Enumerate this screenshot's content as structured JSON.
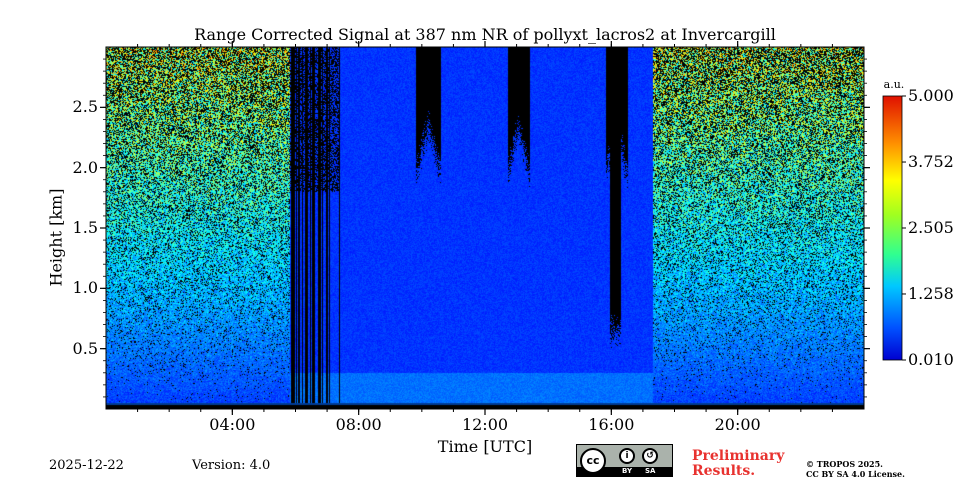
{
  "chart_data": {
    "type": "heatmap",
    "title": "Range Corrected Signal at 387 nm NR of pollyxt_lacros2 at Invercargill",
    "xlabel": "Time [UTC]",
    "ylabel": "Height [km]",
    "xlim": [
      0,
      24
    ],
    "ylim": [
      0,
      3.0
    ],
    "x_ticks": [
      {
        "value": 4,
        "label": "04:00"
      },
      {
        "value": 8,
        "label": "08:00"
      },
      {
        "value": 12,
        "label": "12:00"
      },
      {
        "value": 16,
        "label": "16:00"
      },
      {
        "value": 20,
        "label": "20:00"
      }
    ],
    "y_ticks": [
      {
        "value": 0.5,
        "label": "0.5"
      },
      {
        "value": 1.0,
        "label": "1.0"
      },
      {
        "value": 1.5,
        "label": "1.5"
      },
      {
        "value": 2.0,
        "label": "2.0"
      },
      {
        "value": 2.5,
        "label": "2.5"
      }
    ],
    "colorbar": {
      "unit": "a.u.",
      "min": 0.01,
      "max": 5.0,
      "ticks": [
        {
          "value": 0.01,
          "label": "0.010"
        },
        {
          "value": 1.258,
          "label": "1.258"
        },
        {
          "value": 2.505,
          "label": "2.505"
        },
        {
          "value": 3.752,
          "label": "3.752"
        },
        {
          "value": 5.0,
          "label": "5.000"
        }
      ],
      "colormap": "jet"
    },
    "features": {
      "noise_regions_hours": [
        [
          0,
          5.8
        ],
        [
          17.3,
          24
        ]
      ],
      "striped_region_hours": [
        5.8,
        7.4
      ],
      "cloud_gaps_hours": [
        [
          9.8,
          10.6
        ],
        [
          12.7,
          13.4
        ],
        [
          15.8,
          16.5
        ]
      ],
      "clean_region_hours": [
        7.4,
        17.3
      ]
    }
  },
  "footer": {
    "date": "2025-12-22",
    "version": "Version: 4.0",
    "preliminary_line1": "Preliminary",
    "preliminary_line2": "Results.",
    "copyright_line1": "© TROPOS 2025.",
    "copyright_line2": "CC BY SA 4.0 License.",
    "license_cc": "cc",
    "license_by": "BY",
    "license_sa": "SA"
  },
  "colors": {
    "preliminary": "#e8322f",
    "background": "#ffffff"
  }
}
